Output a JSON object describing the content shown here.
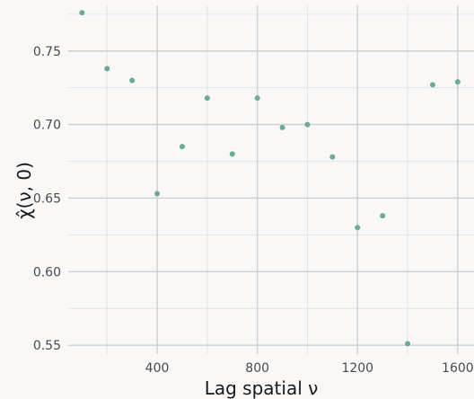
{
  "chart_data": {
    "type": "scatter",
    "xlabel": "Lag spatial ν",
    "ylabel": "χ̂(ν, 0)",
    "xlim": [
      45,
      1665
    ],
    "ylim": [
      0.544,
      0.781
    ],
    "x_ticks": [
      400,
      800,
      1200,
      1600
    ],
    "y_ticks": [
      0.55,
      0.6,
      0.65,
      0.7,
      0.75
    ],
    "x_tick_labels": [
      "400",
      "800",
      "1200",
      "1600"
    ],
    "y_tick_labels": [
      "0.55",
      "0.60",
      "0.65",
      "0.70",
      "0.75"
    ],
    "grid": true,
    "point_color": "#6aaa96",
    "series": [
      {
        "x": [
          100,
          200,
          300,
          400,
          500,
          600,
          700,
          800,
          900,
          1000,
          1100,
          1200,
          1300,
          1400,
          1500,
          1600
        ],
        "y": [
          0.776,
          0.738,
          0.73,
          0.653,
          0.685,
          0.718,
          0.68,
          0.718,
          0.698,
          0.7,
          0.678,
          0.63,
          0.638,
          0.551,
          0.727,
          0.729
        ]
      }
    ]
  }
}
